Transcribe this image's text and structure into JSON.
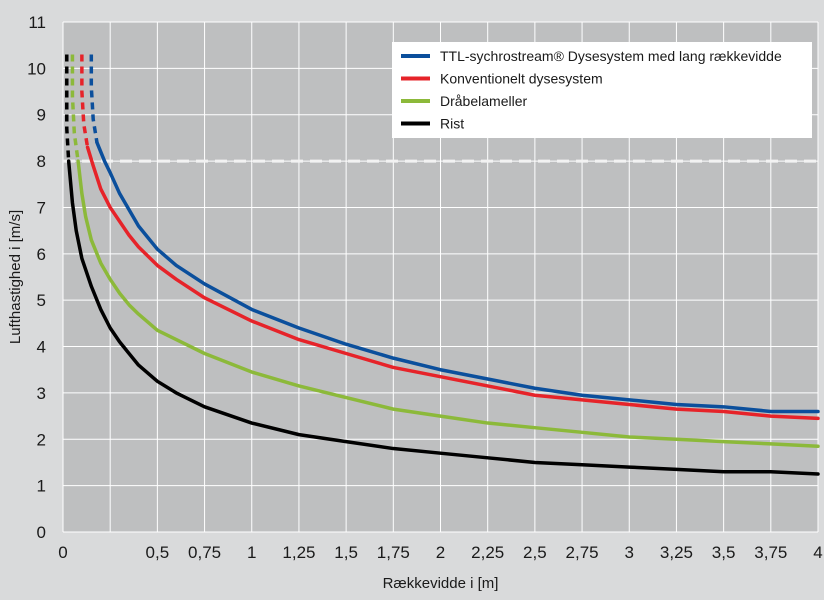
{
  "colors": {
    "page_background": "#d9dadb",
    "plot_background": "#bebfc0",
    "grid": "#ffffff",
    "threshold_line": "#f2f2f2",
    "text": "#1a1a1a"
  },
  "chart_data": {
    "type": "line",
    "xlabel": "Rækkevidde i [m]",
    "ylabel": "Lufthastighed i [m/s]",
    "xlim": [
      0,
      4
    ],
    "ylim": [
      0,
      11
    ],
    "x_ticks": [
      0,
      0.25,
      0.5,
      0.75,
      1,
      1.25,
      1.5,
      1.75,
      2,
      2.25,
      2.5,
      2.75,
      3,
      3.25,
      3.5,
      3.75,
      4
    ],
    "x_tick_labels": [
      "0",
      "0,5",
      "0,75",
      "1",
      "1,25",
      "1,5",
      "1,75",
      "2",
      "2,25",
      "2,5",
      "2,75",
      "3",
      "3,25",
      "3,5",
      "3,75",
      "4"
    ],
    "x_tick_label_values": [
      0,
      0.5,
      0.75,
      1,
      1.25,
      1.5,
      1.75,
      2,
      2.25,
      2.5,
      2.75,
      3,
      3.25,
      3.5,
      3.75,
      4
    ],
    "y_ticks": [
      0,
      1,
      2,
      3,
      4,
      5,
      6,
      7,
      8,
      9,
      10,
      11
    ],
    "y_tick_labels": [
      "0",
      "1",
      "2",
      "3",
      "4",
      "5",
      "6",
      "7",
      "8",
      "9",
      "10",
      "11"
    ],
    "grid": true,
    "threshold": {
      "y": 8,
      "style": "dashed"
    },
    "legend_position": "top-right",
    "series": [
      {
        "name": "TTL-sychrostream® Dysesystem med lang rækkevidde",
        "color": "#0b4f9c",
        "dashed_x": [
          0.15,
          0.15,
          0.16,
          0.18
        ],
        "dashed_y": [
          10.3,
          9.6,
          8.9,
          8.4
        ],
        "x": [
          0.18,
          0.22,
          0.25,
          0.3,
          0.35,
          0.4,
          0.45,
          0.5,
          0.6,
          0.75,
          1.0,
          1.25,
          1.5,
          1.75,
          2.0,
          2.25,
          2.5,
          2.75,
          3.0,
          3.25,
          3.5,
          3.75,
          4.0
        ],
        "y": [
          8.4,
          8.0,
          7.75,
          7.3,
          6.95,
          6.6,
          6.35,
          6.1,
          5.75,
          5.35,
          4.8,
          4.4,
          4.05,
          3.75,
          3.5,
          3.3,
          3.1,
          2.95,
          2.85,
          2.75,
          2.7,
          2.6,
          2.6
        ]
      },
      {
        "name": "Konventionelt dysesystem",
        "color": "#e62329",
        "dashed_x": [
          0.1,
          0.1,
          0.11,
          0.13
        ],
        "dashed_y": [
          10.3,
          9.5,
          8.8,
          8.3
        ],
        "x": [
          0.13,
          0.16,
          0.2,
          0.25,
          0.3,
          0.35,
          0.4,
          0.5,
          0.6,
          0.75,
          1.0,
          1.25,
          1.5,
          1.75,
          2.0,
          2.25,
          2.5,
          2.75,
          3.0,
          3.25,
          3.5,
          3.75,
          4.0
        ],
        "y": [
          8.3,
          7.9,
          7.4,
          7.0,
          6.7,
          6.4,
          6.15,
          5.75,
          5.45,
          5.05,
          4.55,
          4.15,
          3.85,
          3.55,
          3.35,
          3.15,
          2.95,
          2.85,
          2.75,
          2.65,
          2.6,
          2.5,
          2.45
        ]
      },
      {
        "name": "Dråbelameller",
        "color": "#8cb93a",
        "dashed_x": [
          0.05,
          0.05,
          0.06,
          0.08
        ],
        "dashed_y": [
          10.3,
          9.4,
          8.6,
          8.0
        ],
        "x": [
          0.08,
          0.1,
          0.12,
          0.15,
          0.2,
          0.25,
          0.3,
          0.35,
          0.4,
          0.5,
          0.6,
          0.75,
          1.0,
          1.25,
          1.5,
          1.75,
          2.0,
          2.25,
          2.5,
          2.75,
          3.0,
          3.25,
          3.5,
          3.75,
          4.0
        ],
        "y": [
          8.0,
          7.3,
          6.8,
          6.3,
          5.8,
          5.45,
          5.15,
          4.9,
          4.7,
          4.35,
          4.15,
          3.85,
          3.45,
          3.15,
          2.9,
          2.65,
          2.5,
          2.35,
          2.25,
          2.15,
          2.05,
          2.0,
          1.95,
          1.9,
          1.85
        ]
      },
      {
        "name": "Rist",
        "color": "#000000",
        "dashed_x": [
          0.02,
          0.02,
          0.02,
          0.03
        ],
        "dashed_y": [
          10.3,
          9.4,
          8.7,
          8.0
        ],
        "x": [
          0.03,
          0.05,
          0.07,
          0.1,
          0.15,
          0.2,
          0.25,
          0.3,
          0.4,
          0.5,
          0.6,
          0.75,
          1.0,
          1.25,
          1.5,
          1.75,
          2.0,
          2.25,
          2.5,
          2.75,
          3.0,
          3.25,
          3.5,
          3.75,
          4.0
        ],
        "y": [
          8.0,
          7.1,
          6.5,
          5.9,
          5.3,
          4.8,
          4.4,
          4.1,
          3.6,
          3.25,
          3.0,
          2.7,
          2.35,
          2.1,
          1.95,
          1.8,
          1.7,
          1.6,
          1.5,
          1.45,
          1.4,
          1.35,
          1.3,
          1.3,
          1.25
        ]
      }
    ]
  }
}
